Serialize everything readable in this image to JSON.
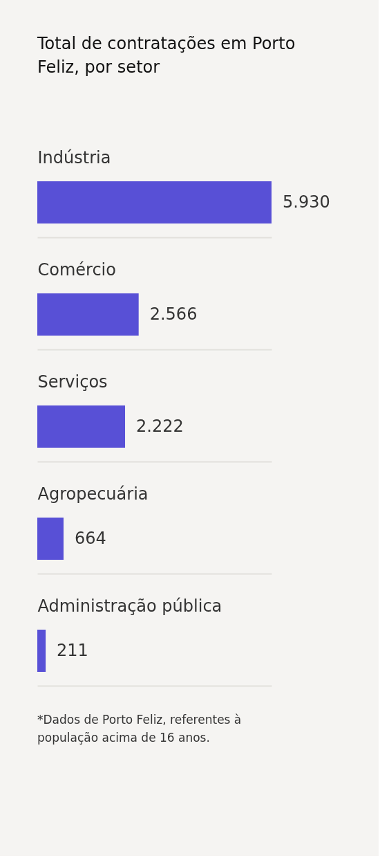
{
  "chart_data": {
    "type": "bar",
    "orientation": "horizontal",
    "title": "Total de contratações em Porto Feliz, por setor",
    "categories": [
      "Indústria",
      "Comércio",
      "Serviços",
      "Agropecuária",
      "Administração pública"
    ],
    "values": [
      5930,
      2566,
      2222,
      664,
      211
    ],
    "value_labels": [
      "5.930",
      "2.566",
      "2.222",
      "664",
      "211"
    ],
    "color": "#5850d6",
    "grid": "y",
    "tick_labels": "y",
    "annotations": [
      "*Dados de Porto Feliz, referentes à população acima de 16 anos."
    ]
  }
}
